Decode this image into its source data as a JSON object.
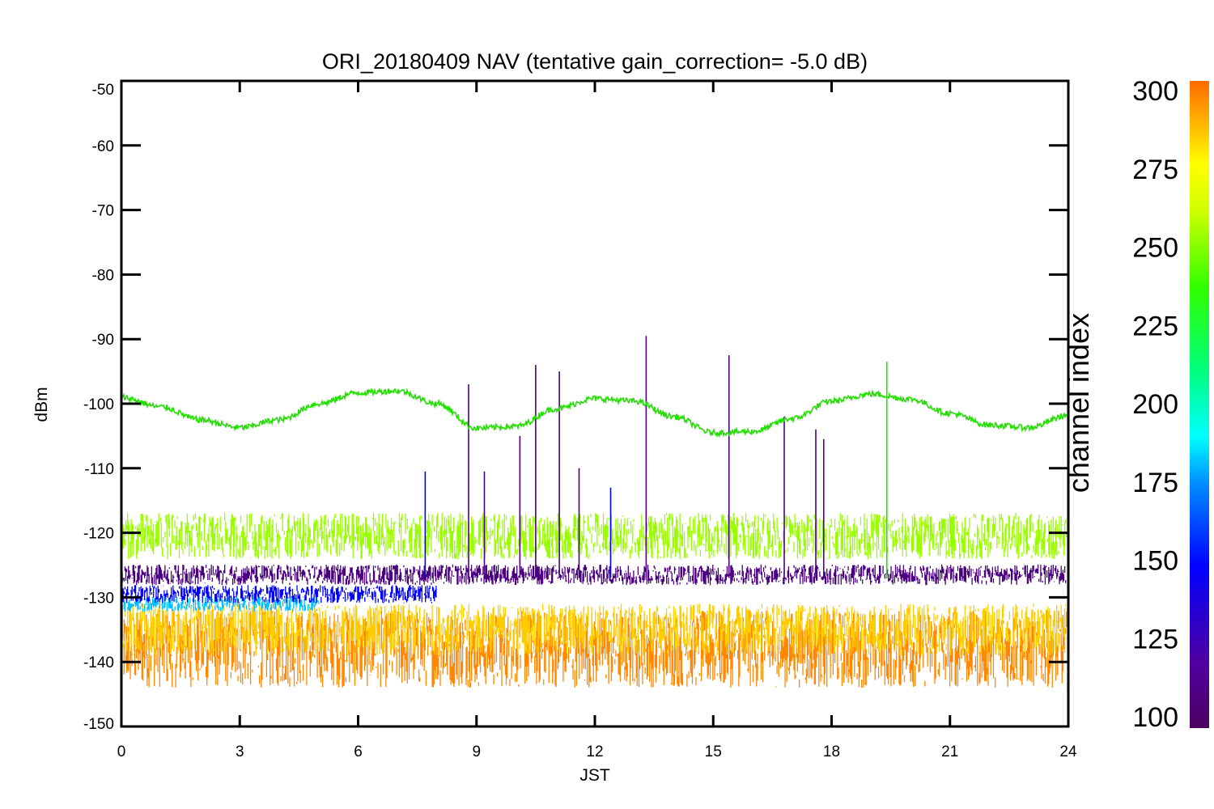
{
  "chart_data": {
    "type": "line",
    "title": "ORI_20180409 NAV (tentative gain_correction= -5.0 dB)",
    "xlabel": "JST",
    "ylabel": "dBm",
    "xlim": [
      0,
      24
    ],
    "ylim": [
      -150,
      -50
    ],
    "x_ticks": [
      "0",
      "3",
      "6",
      "9",
      "12",
      "15",
      "18",
      "21",
      "24"
    ],
    "y_ticks": [
      "-50",
      "-60",
      "-70",
      "-80",
      "-90",
      "-100",
      "-110",
      "-120",
      "-130",
      "-140",
      "-150"
    ],
    "grid": false,
    "colorbar": {
      "label": "channel index",
      "range": [
        100,
        300
      ],
      "ticks": [
        "100",
        "125",
        "150",
        "175",
        "200",
        "225",
        "250",
        "275",
        "300"
      ],
      "colormap": "rainbow"
    },
    "series": [
      {
        "color": "#22e000",
        "style": "smooth-oscillating",
        "x": [
          0,
          1,
          2,
          3,
          4,
          5,
          6,
          7,
          8,
          9,
          10,
          11,
          12,
          13,
          14,
          15,
          16,
          17,
          18,
          19,
          20,
          21,
          22,
          23,
          24
        ],
        "y": [
          -99,
          -100.5,
          -102.5,
          -103.7,
          -102.5,
          -100,
          -98.3,
          -98,
          -100,
          -103.8,
          -103.5,
          -100.8,
          -99.2,
          -99.6,
          -102,
          -104.5,
          -104.3,
          -102.3,
          -99.6,
          -98.5,
          -99.3,
          -101.5,
          -103.3,
          -103.7,
          -101.8
        ]
      },
      {
        "color": "#99ff00",
        "style": "noise-band",
        "x": [
          0,
          24
        ],
        "y_center": [
          -120.5,
          -120.5
        ],
        "spread": 3.6
      },
      {
        "color": "#4b0080",
        "style": "noise-band",
        "x": [
          0,
          24
        ],
        "y_center": [
          -126.5,
          -126.5
        ],
        "spread": 1.6
      },
      {
        "color": "#0000ff",
        "style": "noise-band",
        "x": [
          0,
          8
        ],
        "y_center": [
          -129.5,
          -129.5
        ],
        "spread": 1.4
      },
      {
        "color": "#00c0ff",
        "style": "noise-band",
        "x": [
          0,
          5
        ],
        "y_center": [
          -131,
          -131
        ],
        "spread": 1.2
      },
      {
        "color": "#ffcc00",
        "style": "noise-band",
        "x": [
          0,
          24
        ],
        "y_center": [
          -135,
          -135
        ],
        "spread": 4
      },
      {
        "color": "#ff8800",
        "style": "noise-band",
        "x": [
          0,
          24
        ],
        "y_center": [
          -138,
          -138
        ],
        "spread": 6
      }
    ],
    "spikes": [
      {
        "x": 8.8,
        "y": -97,
        "color": "#4b0080"
      },
      {
        "x": 10.1,
        "y": -105,
        "color": "#4b0080"
      },
      {
        "x": 10.5,
        "y": -94,
        "color": "#4b0080"
      },
      {
        "x": 11.1,
        "y": -95,
        "color": "#4b0080"
      },
      {
        "x": 13.3,
        "y": -89.5,
        "color": "#4b0080"
      },
      {
        "x": 15.4,
        "y": -92.5,
        "color": "#4b0080"
      },
      {
        "x": 16.8,
        "y": -102,
        "color": "#4b0080"
      },
      {
        "x": 17.6,
        "y": -104,
        "color": "#4b0080"
      },
      {
        "x": 17.8,
        "y": -105.5,
        "color": "#4b0080"
      },
      {
        "x": 19.4,
        "y": -93.5,
        "color": "#22e000"
      },
      {
        "x": 7.7,
        "y": -110.5,
        "color": "#0000ff"
      },
      {
        "x": 9.2,
        "y": -110.5,
        "color": "#4b0080"
      },
      {
        "x": 11.6,
        "y": -110,
        "color": "#4b0080"
      },
      {
        "x": 12.4,
        "y": -113,
        "color": "#0000ff"
      }
    ]
  }
}
